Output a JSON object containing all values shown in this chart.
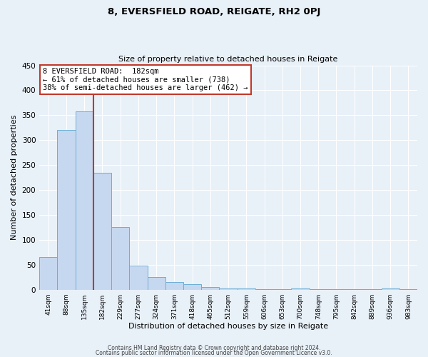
{
  "title": "8, EVERSFIELD ROAD, REIGATE, RH2 0PJ",
  "subtitle": "Size of property relative to detached houses in Reigate",
  "xlabel": "Distribution of detached houses by size in Reigate",
  "ylabel": "Number of detached properties",
  "bar_labels": [
    "41sqm",
    "88sqm",
    "135sqm",
    "182sqm",
    "229sqm",
    "277sqm",
    "324sqm",
    "371sqm",
    "418sqm",
    "465sqm",
    "512sqm",
    "559sqm",
    "606sqm",
    "653sqm",
    "700sqm",
    "748sqm",
    "795sqm",
    "842sqm",
    "889sqm",
    "936sqm",
    "983sqm"
  ],
  "bar_values": [
    65,
    320,
    358,
    235,
    125,
    48,
    25,
    16,
    11,
    5,
    2,
    2,
    1,
    1,
    2,
    1,
    1,
    1,
    1,
    2,
    1
  ],
  "bar_color": "#c5d8f0",
  "bar_edge_color": "#6baed6",
  "vline_x_index": 3,
  "vline_color": "#c0392b",
  "marker_label": "8 EVERSFIELD ROAD:  182sqm",
  "annotation_line1": "← 61% of detached houses are smaller (738)",
  "annotation_line2": "38% of semi-detached houses are larger (462) →",
  "annotation_box_edge_color": "#c0392b",
  "ylim": [
    0,
    450
  ],
  "yticks": [
    0,
    50,
    100,
    150,
    200,
    250,
    300,
    350,
    400,
    450
  ],
  "footer1": "Contains HM Land Registry data © Crown copyright and database right 2024.",
  "footer2": "Contains public sector information licensed under the Open Government Licence v3.0.",
  "bg_color": "#e8f0f8",
  "plot_bg_color": "#e8f0f8",
  "title_fontsize": 9.5,
  "subtitle_fontsize": 8,
  "ylabel_fontsize": 8,
  "xlabel_fontsize": 8,
  "ytick_fontsize": 7.5,
  "xtick_fontsize": 6.5,
  "annotation_fontsize": 7.5,
  "footer_fontsize": 5.5
}
